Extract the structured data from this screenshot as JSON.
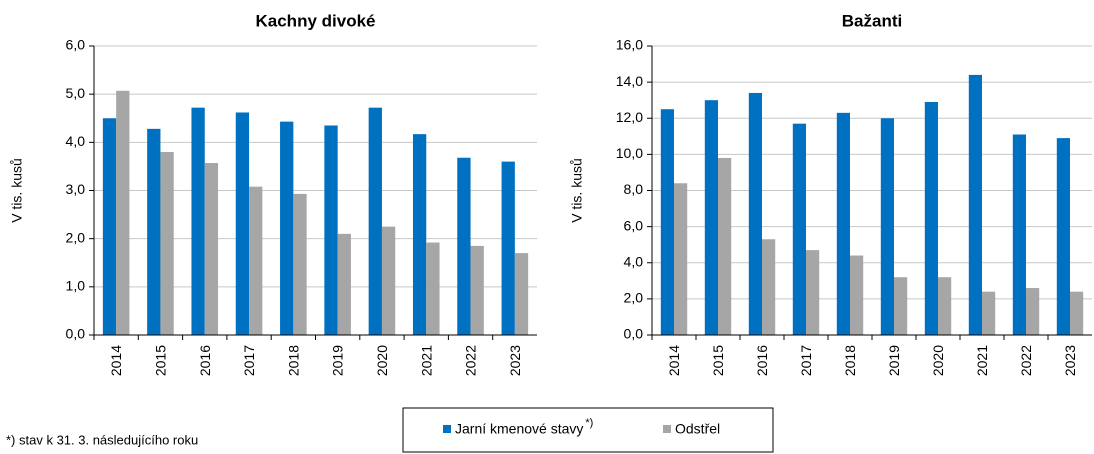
{
  "chart_data": [
    {
      "type": "bar",
      "title": "Kachny divoké",
      "y_label": "V tis. kusů",
      "categories": [
        "2014",
        "2015",
        "2016",
        "2017",
        "2018",
        "2019",
        "2020",
        "2021",
        "2022",
        "2023"
      ],
      "series": [
        {
          "color": "#0070c0",
          "values": [
            4.5,
            4.28,
            4.72,
            4.62,
            4.43,
            4.35,
            4.72,
            4.17,
            3.68,
            3.6
          ]
        },
        {
          "color": "#a6a6a6",
          "values": [
            5.07,
            3.8,
            3.57,
            3.08,
            2.93,
            2.1,
            2.25,
            1.92,
            1.85,
            1.7
          ]
        }
      ],
      "ylim": [
        0,
        6
      ],
      "yticks": [
        {
          "value": 0,
          "label": "0,0"
        },
        {
          "value": 1,
          "label": "1,0"
        },
        {
          "value": 2,
          "label": "2,0"
        },
        {
          "value": 3,
          "label": "3,0"
        },
        {
          "value": 4,
          "label": "4,0"
        },
        {
          "value": 5,
          "label": "5,0"
        },
        {
          "value": 6,
          "label": "6,0"
        }
      ],
      "grid": true
    },
    {
      "type": "bar",
      "title": "Bažanti",
      "y_label": "V tis. kusů",
      "categories": [
        "2014",
        "2015",
        "2016",
        "2017",
        "2018",
        "2019",
        "2020",
        "2021",
        "2022",
        "2023"
      ],
      "series": [
        {
          "color": "#0070c0",
          "values": [
            12.5,
            13.0,
            13.4,
            11.7,
            12.3,
            12.0,
            12.9,
            14.4,
            11.1,
            10.9
          ]
        },
        {
          "color": "#a6a6a6",
          "values": [
            8.4,
            9.8,
            5.3,
            4.7,
            4.4,
            3.2,
            3.2,
            2.4,
            2.6,
            2.4
          ]
        }
      ],
      "ylim": [
        0,
        16
      ],
      "yticks": [
        {
          "value": 0,
          "label": "0,0"
        },
        {
          "value": 2,
          "label": "2,0"
        },
        {
          "value": 4,
          "label": "4,0"
        },
        {
          "value": 6,
          "label": "6,0"
        },
        {
          "value": 8,
          "label": "8,0"
        },
        {
          "value": 10,
          "label": "10,0"
        },
        {
          "value": 12,
          "label": "12,0"
        },
        {
          "value": 14,
          "label": "14,0"
        },
        {
          "value": 16,
          "label": "16,0"
        }
      ],
      "grid": true
    }
  ],
  "legend": {
    "entries": [
      {
        "name": "Jarní kmenové stavy",
        "marker": "*)"
      },
      {
        "name": "Odstřel"
      }
    ]
  },
  "footnote": "*) stav k 31. 3. následujícího roku"
}
